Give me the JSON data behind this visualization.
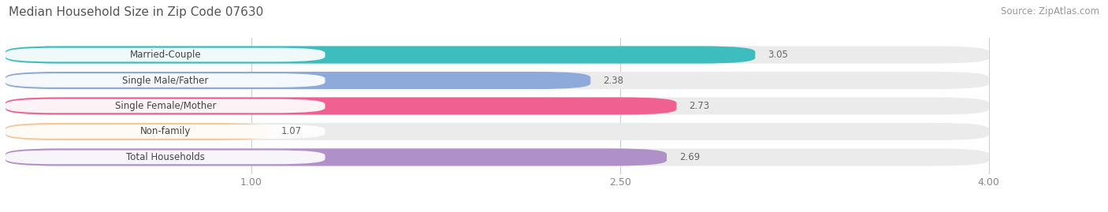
{
  "title": "Median Household Size in Zip Code 07630",
  "source": "Source: ZipAtlas.com",
  "categories": [
    "Married-Couple",
    "Single Male/Father",
    "Single Female/Mother",
    "Non-family",
    "Total Households"
  ],
  "values": [
    3.05,
    2.38,
    2.73,
    1.07,
    2.69
  ],
  "bar_colors": [
    "#3dbdbd",
    "#8eaadb",
    "#f06090",
    "#f5c899",
    "#b090c8"
  ],
  "background_color": "#ffffff",
  "bar_bg_color": "#ebebeb",
  "bar_gap_color": "#ffffff",
  "xlim_data": [
    0.0,
    4.0
  ],
  "xticks": [
    1.0,
    2.5,
    4.0
  ],
  "title_fontsize": 11,
  "source_fontsize": 8.5,
  "value_fontsize": 8.5,
  "category_fontsize": 8.5,
  "label_pill_color": "#ffffff",
  "label_pill_alpha": 0.92,
  "value_color": "#666666",
  "label_color": "#444444",
  "tick_color": "#888888",
  "grid_color": "#cccccc"
}
